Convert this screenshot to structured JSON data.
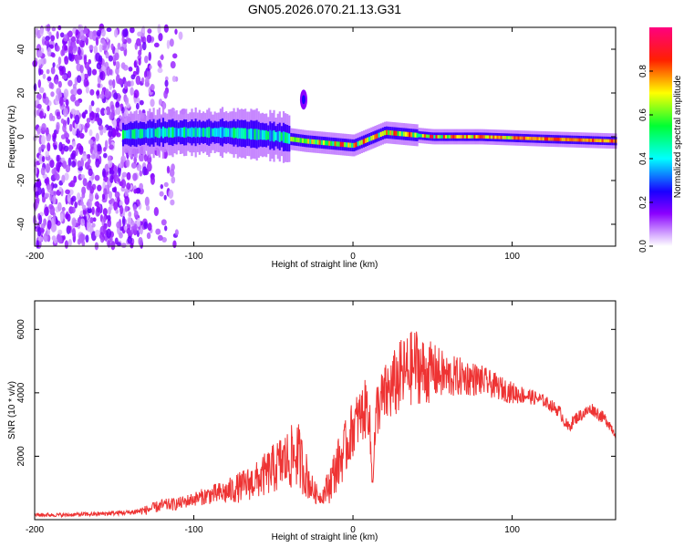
{
  "title": "GN05.2026.070.21.13.G31",
  "chart_data": [
    {
      "type": "heatmap",
      "id": "spectrogram",
      "title": "GN05.2026.070.21.13.G31",
      "xlabel": "Height of straight line (km)",
      "ylabel": "Frequency (Hz)",
      "xlim": [
        -200,
        165
      ],
      "ylim": [
        -50,
        50
      ],
      "xticks": [
        -200,
        -100,
        0,
        100
      ],
      "yticks": [
        -40,
        -20,
        0,
        20,
        40
      ],
      "colorbar": {
        "label": "Normalized spectral amplitude",
        "range": [
          0,
          1
        ],
        "ticks": [
          0.0,
          0.2,
          0.4,
          0.6,
          0.8
        ],
        "tick_labels": [
          "0.0",
          "0.2",
          "0.4",
          "0.6",
          "0.8"
        ],
        "colormap": "rainbow (white-purple-blue-cyan-green-yellow-red-magenta)"
      },
      "features": [
        {
          "name": "scattered noise",
          "x_range": [
            -200,
            -120
          ],
          "freq_range": [
            -50,
            50
          ],
          "amplitude": 0.1
        },
        {
          "name": "signal band",
          "x_range": [
            -145,
            165
          ],
          "center_freq": [
            1,
            2,
            2,
            2,
            1,
            0,
            -1,
            -2,
            -4,
            2,
            0,
            0,
            -1,
            -2
          ],
          "center_x": [
            -145,
            -120,
            -100,
            -80,
            -60,
            -45,
            -40,
            -30,
            0,
            20,
            50,
            80,
            120,
            165
          ]
        },
        {
          "name": "spurious blob",
          "x": -31,
          "freq": 17,
          "amplitude": 0.2
        }
      ]
    },
    {
      "type": "line",
      "id": "snr",
      "xlabel": "Height of straight line (km)",
      "ylabel": "SNR (10 * v/v)",
      "xlim": [
        -200,
        165
      ],
      "ylim": [
        0,
        6900
      ],
      "xticks": [
        -200,
        -100,
        0,
        100
      ],
      "yticks": [
        2000,
        4000,
        6000
      ],
      "series": [
        {
          "name": "SNR",
          "color": "#ee3333",
          "x": [
            -200,
            -180,
            -160,
            -140,
            -130,
            -120,
            -110,
            -100,
            -90,
            -80,
            -70,
            -60,
            -50,
            -45,
            -40,
            -35,
            -30,
            -25,
            -20,
            -15,
            -10,
            -5,
            0,
            5,
            10,
            12,
            15,
            20,
            25,
            30,
            35,
            40,
            45,
            50,
            60,
            70,
            80,
            90,
            100,
            110,
            120,
            130,
            135,
            140,
            150,
            155,
            160,
            165
          ],
          "values": [
            150,
            150,
            180,
            230,
            300,
            450,
            500,
            650,
            780,
            850,
            1050,
            1250,
            1600,
            1800,
            1900,
            2100,
            1500,
            900,
            700,
            1100,
            1700,
            2200,
            2900,
            3300,
            3600,
            1200,
            3500,
            3900,
            4200,
            4500,
            4700,
            4900,
            4600,
            4700,
            4500,
            4500,
            4400,
            4200,
            4000,
            3900,
            3750,
            3400,
            2900,
            3200,
            3500,
            3300,
            3100,
            2700
          ],
          "noise": [
            60,
            60,
            70,
            80,
            150,
            200,
            200,
            220,
            300,
            400,
            500,
            600,
            800,
            900,
            1000,
            1100,
            800,
            400,
            200,
            600,
            800,
            900,
            900,
            900,
            1000,
            500,
            900,
            1000,
            1100,
            1200,
            1200,
            1200,
            1100,
            900,
            700,
            600,
            500,
            400,
            350,
            250,
            200,
            200,
            200,
            200,
            200,
            200,
            200,
            150
          ]
        }
      ]
    }
  ]
}
